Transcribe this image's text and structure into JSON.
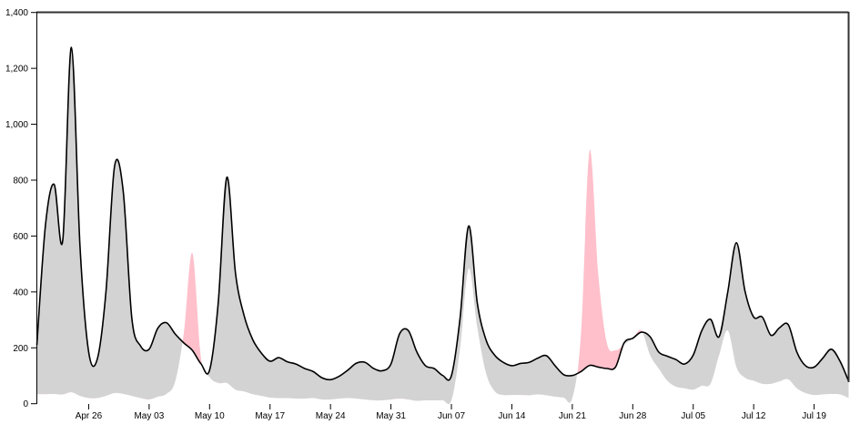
{
  "chart_data": {
    "type": "area",
    "subtype": "difference",
    "title": "",
    "xlabel": "",
    "ylabel": "",
    "x_start_date": "Apr 20",
    "x_unit": "day",
    "xlim": [
      0,
      94
    ],
    "ylim": [
      0,
      1400
    ],
    "grid": false,
    "legend": "none",
    "y_ticks": [
      {
        "value": 0,
        "label": "0"
      },
      {
        "value": 200,
        "label": "200"
      },
      {
        "value": 400,
        "label": "400"
      },
      {
        "value": 600,
        "label": "600"
      },
      {
        "value": 800,
        "label": "800"
      },
      {
        "value": 1000,
        "label": "1,000"
      },
      {
        "value": 1200,
        "label": "1,200"
      },
      {
        "value": 1400,
        "label": "1,400"
      }
    ],
    "x_ticks": [
      {
        "day": 6,
        "label": "Apr 26"
      },
      {
        "day": 13,
        "label": "May 03"
      },
      {
        "day": 20,
        "label": "May 10"
      },
      {
        "day": 27,
        "label": "May 17"
      },
      {
        "day": 34,
        "label": "May 24"
      },
      {
        "day": 41,
        "label": "May 31"
      },
      {
        "day": 48,
        "label": "Jun 07"
      },
      {
        "day": 55,
        "label": "Jun 14"
      },
      {
        "day": 62,
        "label": "Jun 21"
      },
      {
        "day": 69,
        "label": "Jun 28"
      },
      {
        "day": 76,
        "label": "Jul 05"
      },
      {
        "day": 83,
        "label": "Jul 12"
      },
      {
        "day": 90,
        "label": "Jul 19"
      }
    ],
    "series_line": [
      210,
      640,
      785,
      585,
      1275,
      560,
      185,
      160,
      400,
      850,
      760,
      305,
      207,
      195,
      270,
      290,
      250,
      218,
      191,
      143,
      120,
      360,
      810,
      467,
      315,
      229,
      181,
      152,
      165,
      150,
      142,
      126,
      115,
      93,
      86,
      98,
      120,
      145,
      148,
      126,
      118,
      142,
      250,
      262,
      185,
      136,
      126,
      101,
      100,
      305,
      636,
      360,
      229,
      174,
      148,
      136,
      144,
      148,
      163,
      172,
      136,
      104,
      101,
      115,
      137,
      131,
      126,
      131,
      218,
      234,
      256,
      240,
      185,
      170,
      158,
      142,
      174,
      262,
      302,
      240,
      400,
      576,
      402,
      310,
      310,
      245,
      272,
      283,
      185,
      136,
      131,
      163,
      195,
      152,
      80
    ],
    "series_other": [
      34,
      34,
      35,
      33,
      41,
      28,
      20,
      20,
      28,
      38,
      35,
      28,
      20,
      15,
      25,
      35,
      77,
      250,
      540,
      165,
      95,
      74,
      74,
      50,
      44,
      34,
      28,
      22,
      20,
      20,
      18,
      18,
      20,
      15,
      15,
      18,
      20,
      18,
      15,
      12,
      12,
      15,
      18,
      15,
      10,
      12,
      12,
      12,
      12,
      195,
      483,
      272,
      110,
      45,
      31,
      31,
      31,
      30,
      33,
      30,
      25,
      22,
      20,
      250,
      907,
      467,
      218,
      191,
      212,
      234,
      262,
      174,
      126,
      82,
      61,
      55,
      50,
      64,
      71,
      174,
      262,
      131,
      93,
      82,
      71,
      71,
      80,
      87,
      55,
      38,
      31,
      33,
      35,
      33,
      20
    ],
    "colors": {
      "line_above": "#d3d3d3",
      "other_above": "#ffc0cb",
      "line": "#000000",
      "frame": "#333333"
    }
  }
}
